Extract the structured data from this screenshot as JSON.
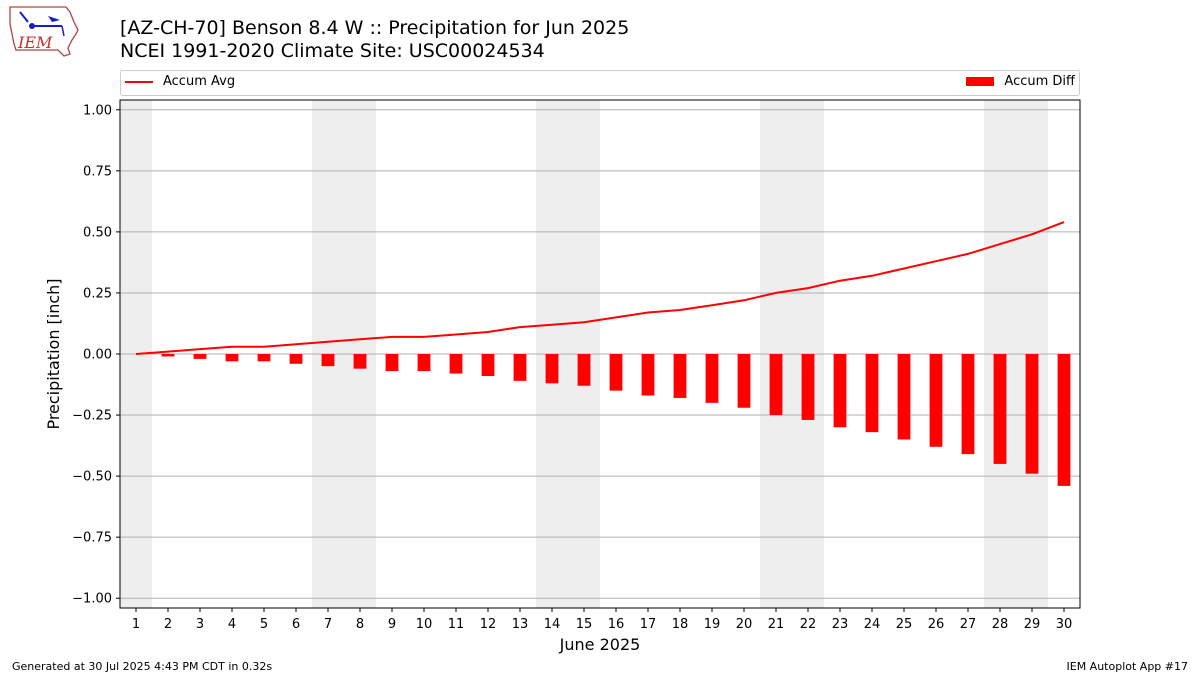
{
  "header": {
    "title_line1": "[AZ-CH-70] Benson 8.4 W :: Precipitation for Jun 2025",
    "title_line2": "NCEI 1991-2020 Climate Site: USC00024534"
  },
  "logo": {
    "text": "IEM",
    "icon": "iowa-state-outline-logo"
  },
  "footer": {
    "generated": "Generated at 30 Jul 2025 4:43 PM CDT in 0.32s",
    "app": "IEM Autoplot App #17"
  },
  "colors": {
    "series": "#ff0000",
    "weekend_shade": "#eeeeee",
    "grid": "#b0b0b0"
  },
  "chart_data": {
    "type": "bar",
    "xlabel": "June 2025",
    "ylabel": "Precipitation [inch]",
    "ylim": [
      -1.04,
      1.04
    ],
    "yticks": [
      -1.0,
      -0.75,
      -0.5,
      -0.25,
      0.0,
      0.25,
      0.5,
      0.75,
      1.0
    ],
    "ytick_labels": [
      "−1.00",
      "−0.75",
      "−0.50",
      "−0.25",
      "0.00",
      "0.25",
      "0.50",
      "0.75",
      "1.00"
    ],
    "grid": "horizontal",
    "legend_placement": "top, above plot",
    "x": [
      1,
      2,
      3,
      4,
      5,
      6,
      7,
      8,
      9,
      10,
      11,
      12,
      13,
      14,
      15,
      16,
      17,
      18,
      19,
      20,
      21,
      22,
      23,
      24,
      25,
      26,
      27,
      28,
      29,
      30
    ],
    "shaded_days": [
      1,
      7,
      8,
      14,
      15,
      21,
      22,
      28,
      29
    ],
    "series": [
      {
        "name": "Accum Avg",
        "type": "line",
        "values": [
          0.0,
          0.01,
          0.02,
          0.03,
          0.03,
          0.04,
          0.05,
          0.06,
          0.07,
          0.07,
          0.08,
          0.09,
          0.11,
          0.12,
          0.13,
          0.15,
          0.17,
          0.18,
          0.2,
          0.22,
          0.25,
          0.27,
          0.3,
          0.32,
          0.35,
          0.38,
          0.41,
          0.45,
          0.49,
          0.54
        ]
      },
      {
        "name": "Accum Diff",
        "type": "bar",
        "values": [
          0.0,
          -0.01,
          -0.02,
          -0.03,
          -0.03,
          -0.04,
          -0.05,
          -0.06,
          -0.07,
          -0.07,
          -0.08,
          -0.09,
          -0.11,
          -0.12,
          -0.13,
          -0.15,
          -0.17,
          -0.18,
          -0.2,
          -0.22,
          -0.25,
          -0.27,
          -0.3,
          -0.32,
          -0.35,
          -0.38,
          -0.41,
          -0.45,
          -0.49,
          -0.54
        ]
      }
    ]
  }
}
